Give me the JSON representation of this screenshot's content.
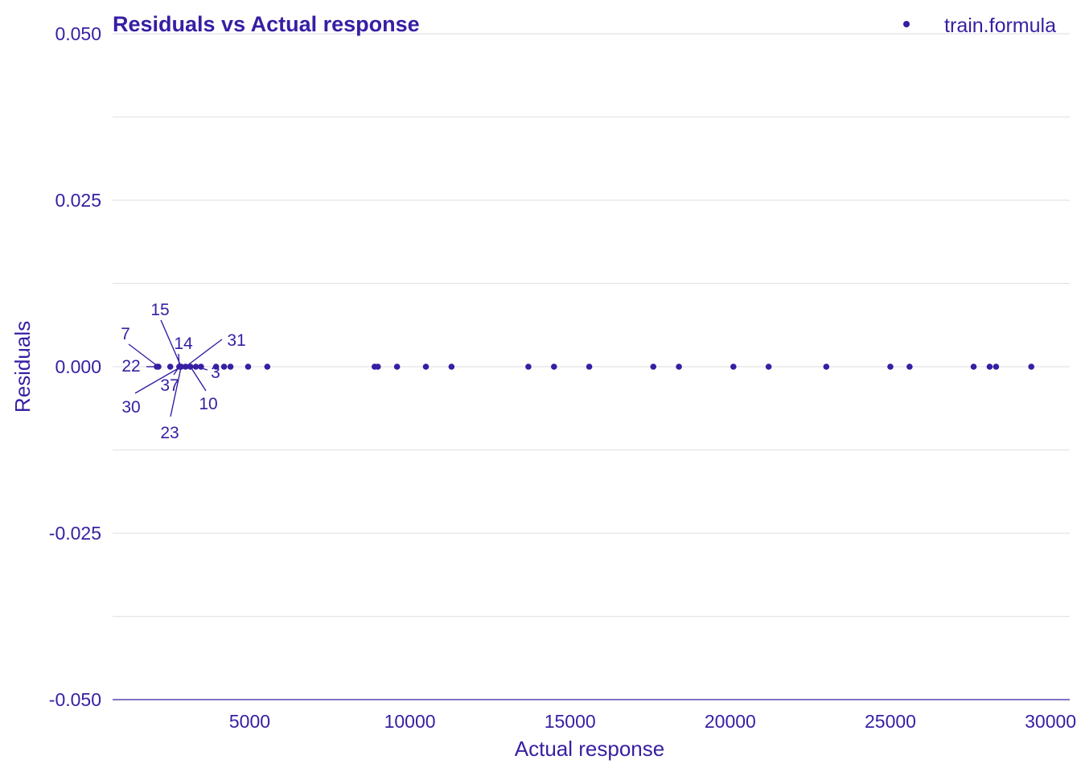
{
  "chart_data": {
    "type": "scatter",
    "title": "Residuals vs Actual response",
    "xlabel": "Actual response",
    "ylabel": "Residuals",
    "xlim": [
      720,
      30600
    ],
    "ylim": [
      -0.05,
      0.05
    ],
    "x_ticks": [
      5000,
      10000,
      15000,
      20000,
      25000,
      30000
    ],
    "x_tick_labels": [
      "5000",
      "10000",
      "15000",
      "20000",
      "25000",
      "30000"
    ],
    "y_ticks": [
      0.05,
      0.025,
      0.0,
      -0.025,
      -0.05
    ],
    "y_tick_labels": [
      "0.050",
      "0.025",
      "0.000",
      "-0.025",
      "-0.050"
    ],
    "y_minor_gridlines": [
      0.0375,
      0.0125,
      -0.0125,
      -0.0375
    ],
    "grid": true,
    "legend_position": "top-right",
    "colors": {
      "series": "#371ea3",
      "grid": "#e4e4e4",
      "axis": "#371ea3"
    },
    "series": [
      {
        "name": "train.formula",
        "x": [
          2100,
          2150,
          2520,
          2800,
          2860,
          3000,
          3150,
          3320,
          3480,
          3950,
          4200,
          4400,
          4950,
          5550,
          8900,
          9000,
          9600,
          10500,
          11300,
          13700,
          14500,
          15600,
          17600,
          18400,
          20100,
          21200,
          23000,
          25000,
          25600,
          27600,
          28100,
          28300,
          29400
        ],
        "y": [
          0,
          0,
          0,
          0,
          0,
          0,
          0,
          0,
          0,
          0,
          0,
          0,
          0,
          0,
          0,
          0,
          0,
          0,
          0,
          0,
          0,
          0,
          0,
          0,
          0,
          0,
          0,
          0,
          0,
          0,
          0,
          0,
          0
        ]
      }
    ],
    "annotations": [
      {
        "text": "15",
        "x": 2860,
        "y": 0
      },
      {
        "text": "7",
        "x": 2150,
        "y": 0
      },
      {
        "text": "14",
        "x": 2800,
        "y": 0
      },
      {
        "text": "31",
        "x": 3000,
        "y": 0
      },
      {
        "text": "22",
        "x": 2100,
        "y": 0
      },
      {
        "text": "3",
        "x": 3320,
        "y": 0
      },
      {
        "text": "37",
        "x": 2800,
        "y": 0
      },
      {
        "text": "10",
        "x": 3150,
        "y": 0
      },
      {
        "text": "30",
        "x": 2860,
        "y": 0
      },
      {
        "text": "23",
        "x": 2860,
        "y": 0
      }
    ]
  }
}
